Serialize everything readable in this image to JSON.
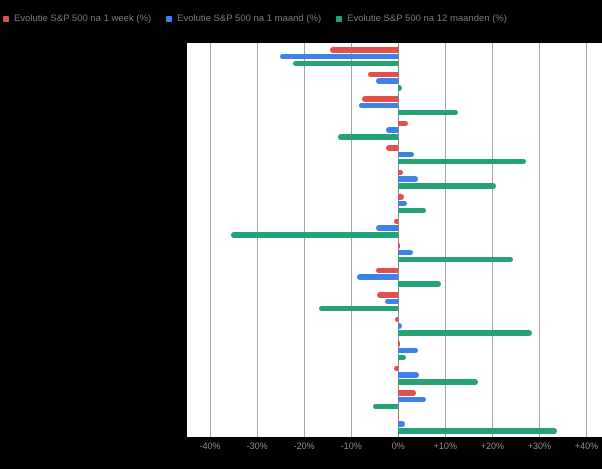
{
  "legend": {
    "items": [
      {
        "label": "Evolutie S&P 500 na 1 week (%)"
      },
      {
        "label": "Evolutie S&P 500 na 1 maand (%)"
      },
      {
        "label": "Evolutie S&P 500 na 12 maanden (%)"
      }
    ]
  },
  "chart_data": {
    "type": "bar",
    "orientation": "horizontal",
    "title": "",
    "xlabel": "",
    "ylabel": "",
    "grid": true,
    "legend_position": "top-left",
    "categories": [
      "",
      "",
      "",
      "",
      "",
      "",
      "",
      "",
      "",
      "",
      "",
      "",
      "",
      "",
      "",
      ""
    ],
    "series": [
      {
        "name": "Evolutie S&P 500 na 1 week (%)",
        "color": "#e0504c",
        "values": [
          -14.5,
          -6.5,
          -7.8,
          2.0,
          -2.7,
          1.1,
          1.3,
          -1.0,
          0.3,
          -4.7,
          -4.6,
          -0.8,
          0.3,
          -0.9,
          3.8,
          0.2
        ]
      },
      {
        "name": "Evolutie S&P 500 na 1 maand (%)",
        "color": "#3d82e8",
        "values": [
          -25.1,
          -4.8,
          -8.4,
          -2.7,
          3.4,
          4.1,
          1.8,
          -4.8,
          3.2,
          -8.7,
          -2.8,
          0.9,
          4.3,
          4.4,
          6.0,
          1.5
        ]
      },
      {
        "name": "Evolutie S&P 500 na 12 maanden (%)",
        "color": "#25a377",
        "values": [
          -22.3,
          0.7,
          12.8,
          -12.8,
          27.2,
          20.7,
          5.8,
          -35.6,
          24.4,
          9.1,
          -16.8,
          28.5,
          1.6,
          17.0,
          -5.3,
          33.8
        ]
      }
    ],
    "x_axis": {
      "tick_labels": [
        "-40%",
        "-30%",
        "-20%",
        "-10%",
        "0%",
        "+10%",
        "+20%",
        "+30%",
        "+40%"
      ],
      "tick_values": [
        -40,
        -30,
        -20,
        -10,
        0,
        10,
        20,
        30,
        40
      ],
      "min": -44.9,
      "max": 43.3
    },
    "colors": {
      "page_background": "#000000",
      "plot_background": "#ffffff",
      "gridline": "#a6a6a6",
      "zero_line": "#8a8a8a",
      "axis_label": "#8f8f8f",
      "legend_text": "#7a7a7a"
    }
  }
}
